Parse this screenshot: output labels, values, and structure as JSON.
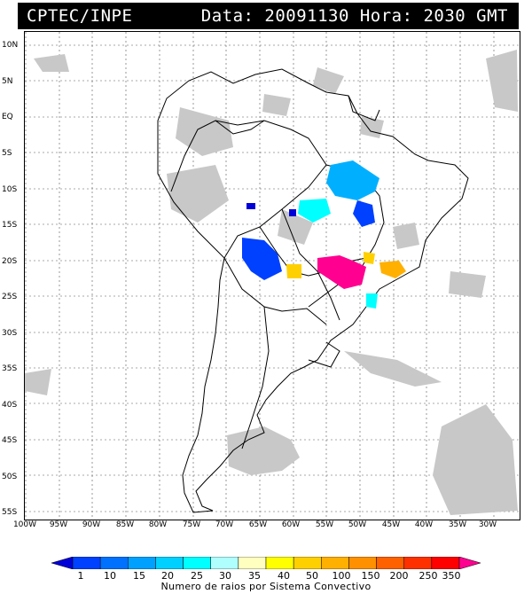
{
  "header": {
    "left_text": "CPTEC/INPE",
    "right_text": "Data: 20091130 Hora: 2030 GMT"
  },
  "map": {
    "lat_labels": [
      "10N",
      "5N",
      "EQ",
      "5S",
      "10S",
      "15S",
      "20S",
      "25S",
      "30S",
      "35S",
      "40S",
      "45S",
      "50S",
      "55S"
    ],
    "lon_labels": [
      "100W",
      "95W",
      "90W",
      "85W",
      "80W",
      "75W",
      "70W",
      "65W",
      "60W",
      "55W",
      "50W",
      "45W",
      "40W",
      "35W",
      "30W"
    ],
    "colors": {
      "land": "#ffffff",
      "coast": "#000000",
      "cloud": "#c8c8c8",
      "grid": "#555555"
    }
  },
  "legend": {
    "ticks": [
      "1",
      "10",
      "15",
      "20",
      "25",
      "30",
      "35",
      "40",
      "50",
      "100",
      "150",
      "200",
      "250",
      "350"
    ],
    "colors": [
      "#0000d8",
      "#0040ff",
      "#0070ff",
      "#00a0ff",
      "#00d0ff",
      "#00ffff",
      "#b0ffff",
      "#ffffc0",
      "#ffff00",
      "#ffd000",
      "#ffb000",
      "#ff9000",
      "#ff6000",
      "#ff3000",
      "#ff0000",
      "#ff0090"
    ],
    "title": "Numero de raios por Sistema Convectivo"
  }
}
